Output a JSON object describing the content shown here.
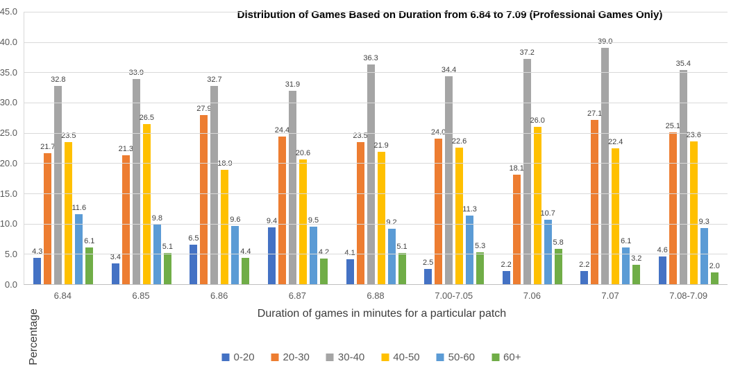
{
  "chart": {
    "title": "Distribution of Games Based on Duration from 6.84 to 7.09 (Professional Games Only)",
    "x_axis_title": "Duration of games in minutes for a particular patch",
    "y_axis_title": "Percentage"
  },
  "chart_data": {
    "type": "bar",
    "title": "Distribution of Games Based on Duration from 6.84 to 7.09 (Professional Games Only)",
    "xlabel": "Duration of games in minutes for a particular patch",
    "ylabel": "Percentage",
    "ylim": [
      0,
      45
    ],
    "y_tick_step": 5,
    "y_tick_format_decimals": 1,
    "grid": true,
    "legend_position": "bottom",
    "categories": [
      "6.84",
      "6.85",
      "6.86",
      "6.87",
      "6.88",
      "7.00-7.05",
      "7.06",
      "7.07",
      "7.08-7.09"
    ],
    "series": [
      {
        "name": "0-20",
        "color": "#4472c4",
        "values": [
          4.3,
          3.4,
          6.5,
          9.4,
          4.1,
          2.5,
          2.2,
          2.2,
          4.6
        ]
      },
      {
        "name": "20-30",
        "color": "#ed7d31",
        "values": [
          21.7,
          21.3,
          27.9,
          24.4,
          23.5,
          24.0,
          18.1,
          27.1,
          25.1
        ]
      },
      {
        "name": "30-40",
        "color": "#a5a5a5",
        "values": [
          32.8,
          33.9,
          32.7,
          31.9,
          36.3,
          34.4,
          37.2,
          39.0,
          35.4
        ]
      },
      {
        "name": "40-50",
        "color": "#ffc000",
        "values": [
          23.5,
          26.5,
          18.9,
          20.6,
          21.9,
          22.6,
          26.0,
          22.4,
          23.6
        ]
      },
      {
        "name": "50-60",
        "color": "#5b9bd5",
        "values": [
          11.6,
          9.8,
          9.6,
          9.5,
          9.2,
          11.3,
          10.7,
          6.1,
          9.3
        ]
      },
      {
        "name": "60+",
        "color": "#70ad47",
        "values": [
          6.1,
          5.1,
          4.4,
          4.2,
          5.1,
          5.3,
          5.8,
          3.2,
          2.0
        ]
      }
    ]
  }
}
